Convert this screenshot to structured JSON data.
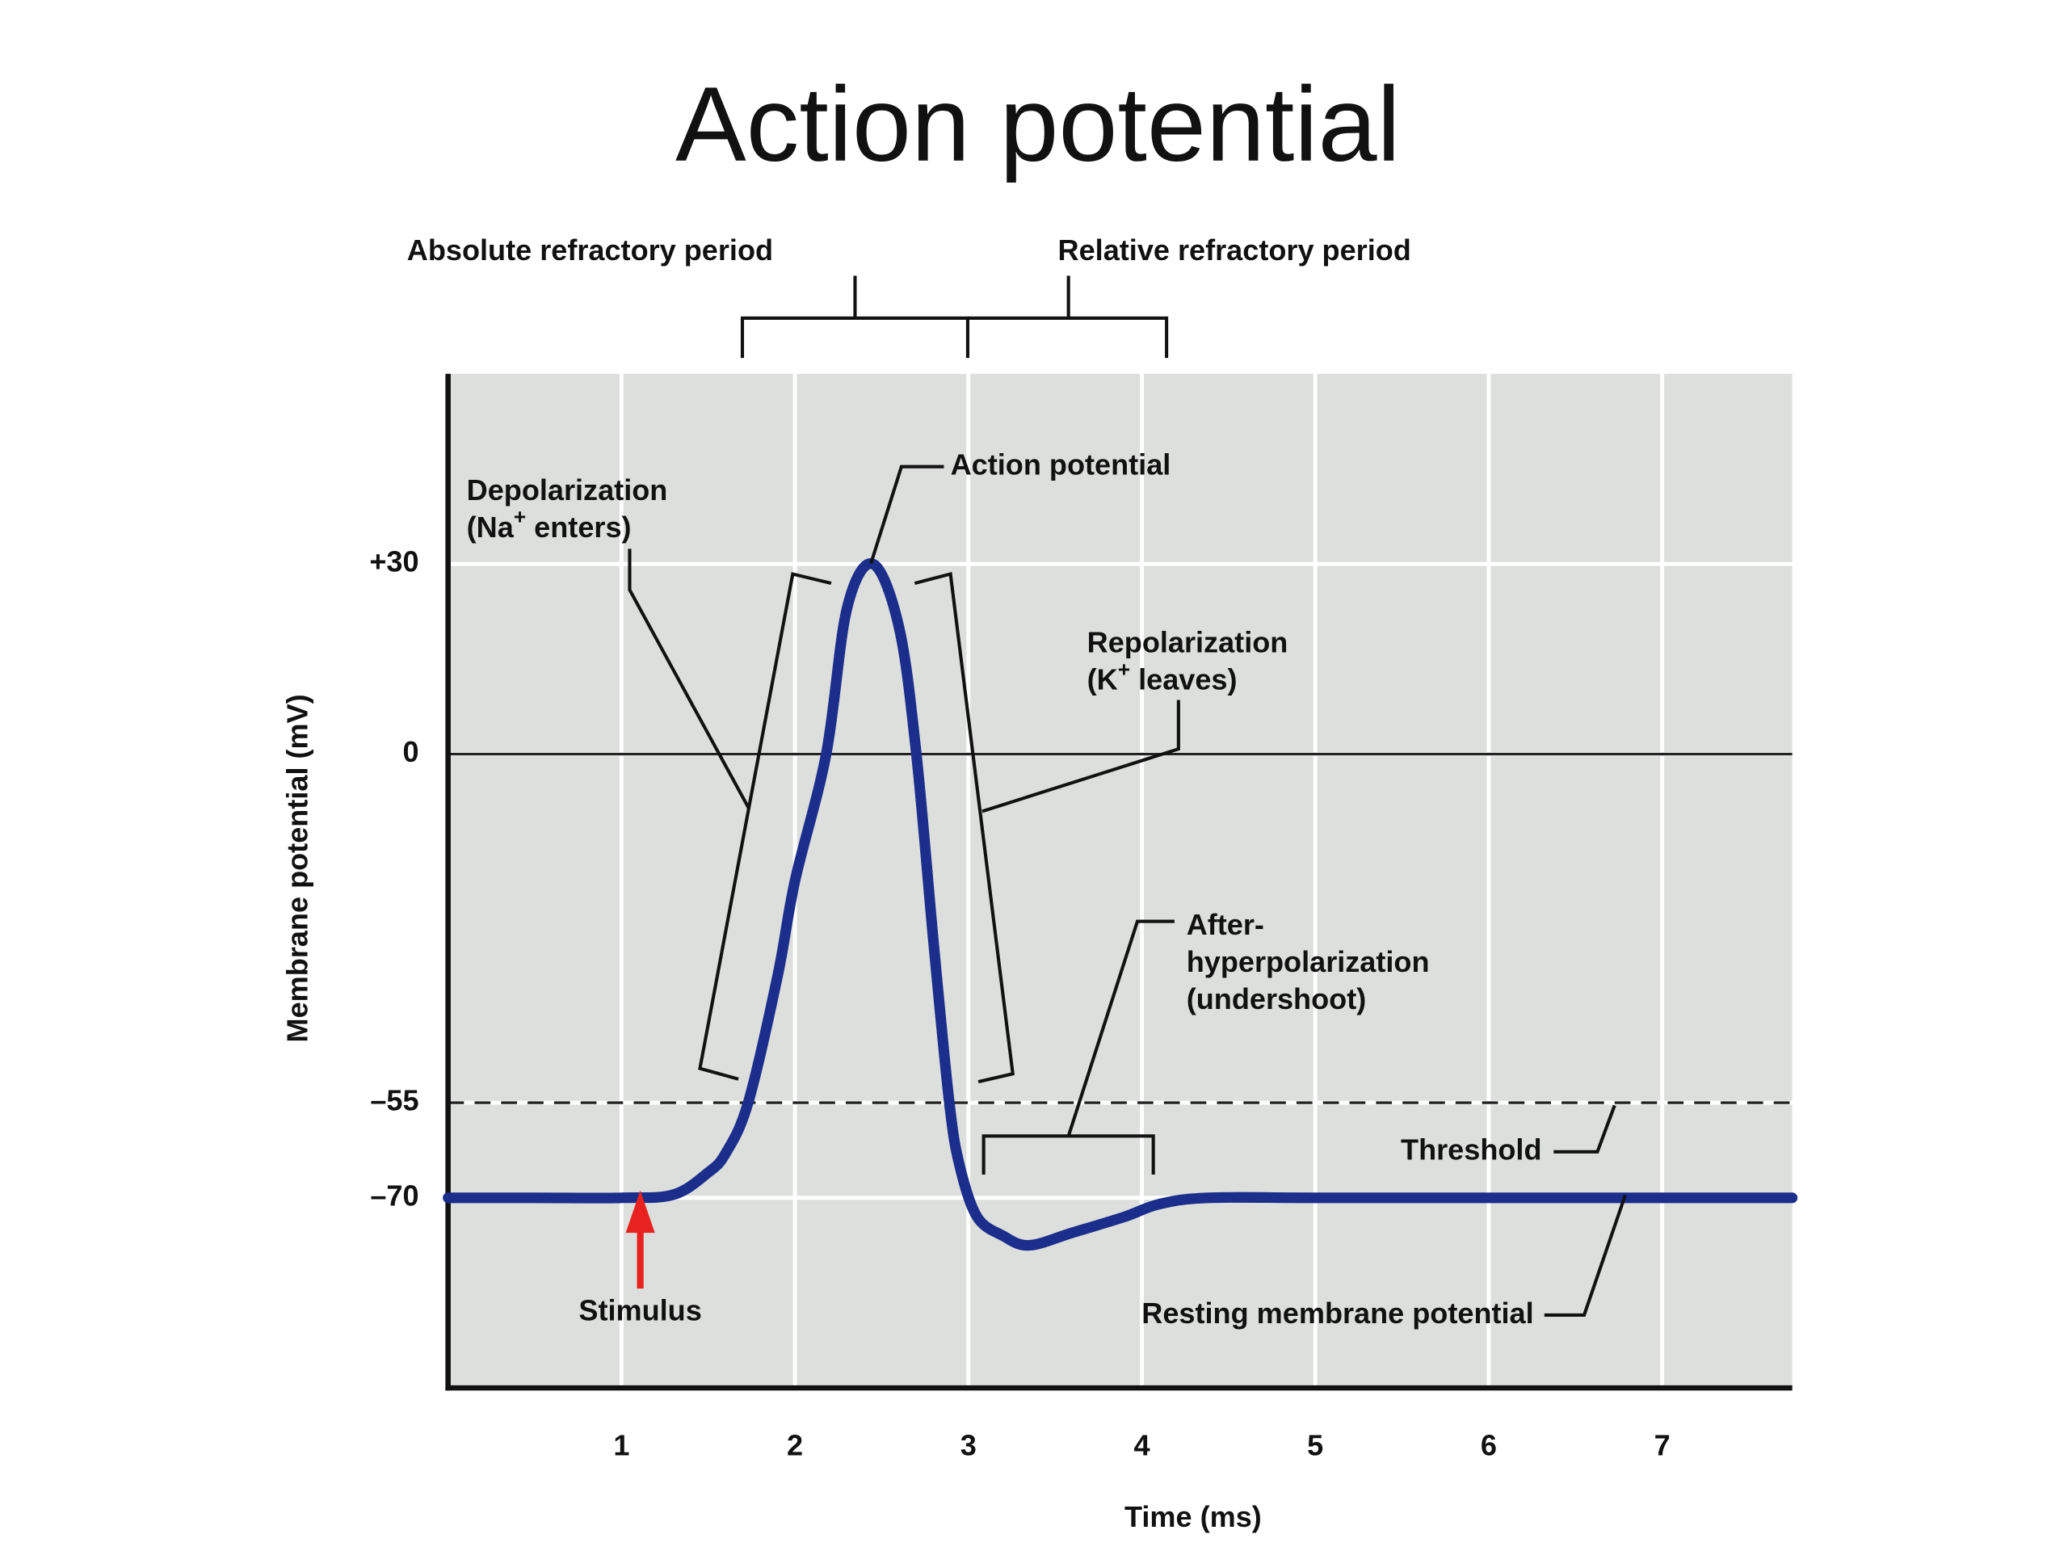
{
  "chart_data": {
    "type": "line",
    "title": "Action potential",
    "x_label": "Time (ms)",
    "y_label": "Membrane potential (mV)",
    "x": [
      0,
      0.5,
      1.0,
      1.3,
      1.5,
      1.6,
      1.73,
      1.9,
      2.0,
      2.18,
      2.3,
      2.45,
      2.6,
      2.7,
      2.8,
      2.89,
      2.95,
      3.05,
      3.2,
      3.35,
      3.6,
      3.9,
      4.1,
      4.38,
      5,
      6,
      7,
      7.75
    ],
    "series": [
      {
        "color": "#1c2e8c",
        "values": [
          -70,
          -70,
          -70,
          -69.5,
          -66,
          -63,
          -55,
          -35,
          -20,
          0,
          23,
          30,
          20,
          0,
          -30,
          -55,
          -65,
          -73,
          -76,
          -77.5,
          -75.5,
          -73,
          -71,
          -70,
          -70,
          -70,
          -70,
          -70
        ]
      }
    ],
    "xlim": [
      0,
      7.75
    ],
    "xticks": [
      1,
      2,
      3,
      4,
      5,
      6,
      7
    ],
    "ylim": [
      -100,
      60
    ],
    "yticks": [
      {
        "value": 30,
        "label": "+30"
      },
      0,
      {
        "value": -55,
        "label": "–55"
      },
      {
        "value": -70,
        "label": "–70"
      }
    ],
    "grid": true,
    "zero_line": true,
    "threshold": {
      "label": "Threshold",
      "value": -55
    },
    "stimulus_color": "#e8231f",
    "annotations": [
      {
        "lines": [
          [
            "Absolute refractory period"
          ]
        ]
      },
      {
        "lines": [
          [
            "Relative refractory period"
          ]
        ]
      },
      {
        "lines": [
          [
            "Action potential"
          ]
        ]
      },
      {
        "lines": [
          [
            "Depolarization"
          ],
          [
            "(Na",
            "+",
            " enters)"
          ]
        ]
      },
      {
        "lines": [
          [
            "Repolarization"
          ],
          [
            "(K",
            "+",
            " leaves)"
          ]
        ]
      },
      {
        "lines": [
          [
            "After-"
          ],
          [
            "hyperpolarization"
          ],
          [
            "(undershoot)"
          ]
        ]
      },
      {
        "lines": [
          [
            "Stimulus"
          ]
        ]
      },
      {
        "lines": [
          [
            "Resting membrane potential"
          ]
        ]
      }
    ]
  }
}
